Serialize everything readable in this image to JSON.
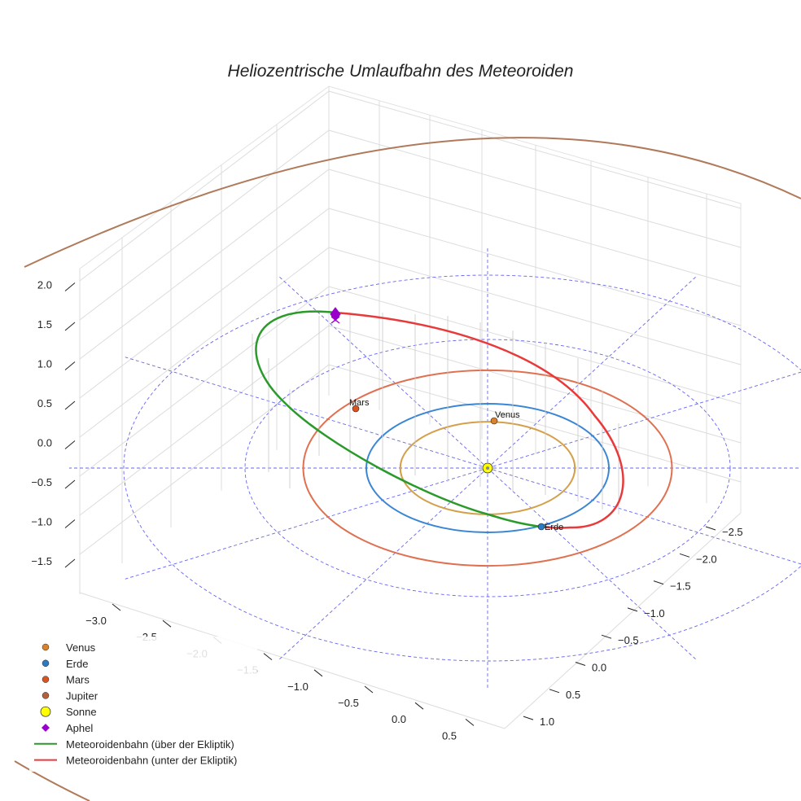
{
  "chart_data": {
    "type": "line",
    "projection": "3d",
    "title": "Heliozentrische Umlaufbahn des Meteoroiden",
    "axes": {
      "x": {
        "ticks": [
          -3.0,
          -2.5,
          -2.0,
          -1.5,
          -1.0,
          -0.5,
          0.0,
          0.5
        ],
        "labels": [
          "−3.0",
          "−2.5",
          "−2.0",
          "−1.5",
          "−1.0",
          "−0.5",
          "0.0",
          "0.5"
        ]
      },
      "y": {
        "ticks": [
          -2.5,
          -2.0,
          -1.5,
          -1.0,
          -0.5,
          0.0,
          0.5,
          1.0
        ],
        "labels": [
          "−2.5",
          "−2.0",
          "−1.5",
          "−1.0",
          "−0.5",
          "0.0",
          "0.5",
          "1.0"
        ]
      },
      "z": {
        "ticks": [
          -1.5,
          -1.0,
          -0.5,
          0.0,
          0.5,
          1.0,
          1.5,
          2.0
        ],
        "labels": [
          "−1.5",
          "−1.0",
          "−0.5",
          "0.0",
          "0.5",
          "1.0",
          "1.5",
          "2.0"
        ]
      }
    },
    "planets": [
      {
        "name": "Venus",
        "label": "Venus",
        "orbit_radius_au": 0.72,
        "color": "#d4a04a",
        "marker_color": "#d9822b"
      },
      {
        "name": "Erde",
        "label": "Erde",
        "orbit_radius_au": 1.0,
        "color": "#3a86d4",
        "marker_color": "#2b7bc0"
      },
      {
        "name": "Mars",
        "label": "Mars",
        "orbit_radius_au": 1.52,
        "color": "#e07050",
        "marker_color": "#d9541e"
      },
      {
        "name": "Jupiter",
        "label": "",
        "orbit_radius_au": 5.2,
        "color": "#b07a5a",
        "marker_color": "#b5603a"
      }
    ],
    "sun": {
      "name": "Sonne",
      "x": 0,
      "y": 0,
      "z": 0,
      "color": "#ffff00"
    },
    "meteoroid_orbit": {
      "segments": [
        {
          "name": "Meteoroidenbahn (über der Ekliptik)",
          "color": "#2a9a2a"
        },
        {
          "name": "Meteoroidenbahn (unter der Ekliptik)",
          "color": "#e83a3a"
        }
      ],
      "aphel": {
        "name": "Aphel",
        "color": "#9900cc"
      }
    },
    "ecliptic_grid": {
      "rings_au": [
        1.0,
        2.0,
        3.0
      ],
      "spokes": 12,
      "color": "#6666ee"
    },
    "legend": {
      "position": "bottom-left",
      "entries": [
        {
          "label": "Venus",
          "kind": "dot",
          "color": "#d9822b"
        },
        {
          "label": "Erde",
          "kind": "dot",
          "color": "#2b7bc0"
        },
        {
          "label": "Mars",
          "kind": "dot",
          "color": "#d9541e"
        },
        {
          "label": "Jupiter",
          "kind": "dot",
          "color": "#b5603a"
        },
        {
          "label": "Sonne",
          "kind": "bigdot",
          "color": "#ffff00"
        },
        {
          "label": "Aphel",
          "kind": "diamond",
          "color": "#9900cc"
        },
        {
          "label": "Meteoroidenbahn (über der Ekliptik)",
          "kind": "line",
          "color": "#2a9a2a"
        },
        {
          "label": "Meteoroidenbahn (unter der Ekliptik)",
          "kind": "line",
          "color": "#e83a3a"
        }
      ]
    }
  }
}
